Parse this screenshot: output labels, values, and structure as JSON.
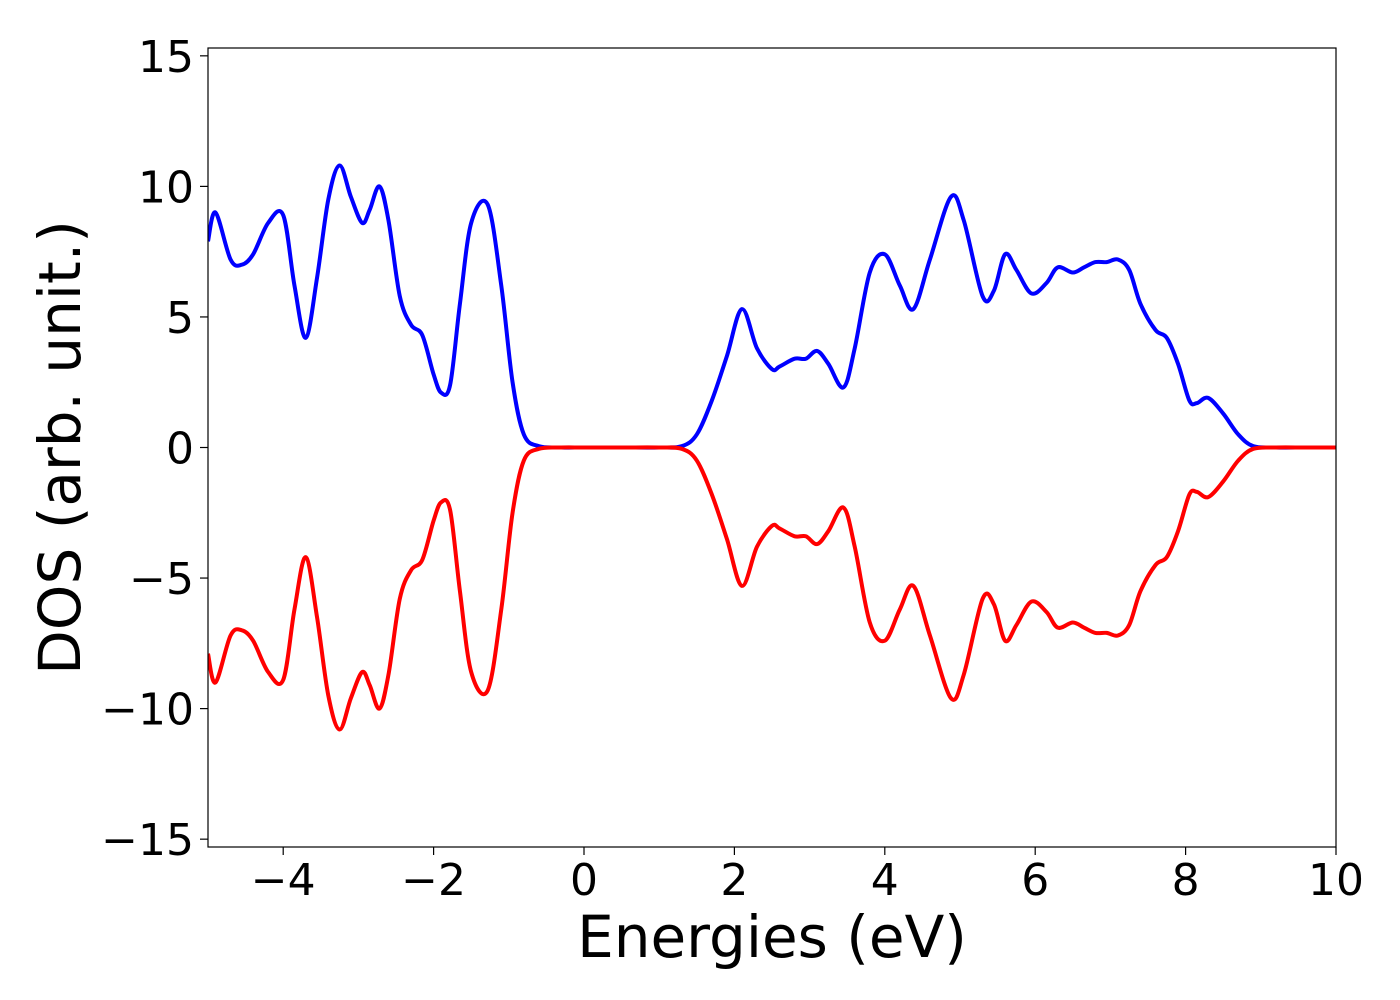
{
  "chart_data": {
    "type": "line",
    "title": "",
    "xlabel": "Energies (eV)",
    "ylabel": "DOS (arb. unit.)",
    "xlim": [
      -5,
      10
    ],
    "ylim": [
      -15.3,
      15.3
    ],
    "x_ticks": [
      -4,
      -2,
      0,
      2,
      4,
      6,
      8,
      10
    ],
    "x_tick_labels": [
      "−4",
      "−2",
      "0",
      "2",
      "4",
      "6",
      "8",
      "10"
    ],
    "y_ticks": [
      -15,
      -10,
      -5,
      0,
      5,
      10,
      15
    ],
    "y_tick_labels": [
      "−15",
      "−10",
      "−5",
      "0",
      "5",
      "10",
      "15"
    ],
    "grid": false,
    "legend": "none",
    "series": [
      {
        "color": "#0000ff",
        "x": [
          -5.0,
          -4.9,
          -4.7,
          -4.55,
          -4.4,
          -4.2,
          -4.0,
          -3.85,
          -3.7,
          -3.55,
          -3.4,
          -3.25,
          -3.1,
          -2.95,
          -2.85,
          -2.72,
          -2.6,
          -2.45,
          -2.3,
          -2.15,
          -2.0,
          -1.9,
          -1.78,
          -1.65,
          -1.5,
          -1.28,
          -1.1,
          -0.95,
          -0.8,
          -0.6,
          -0.3,
          0.0,
          0.5,
          1.0,
          1.3,
          1.5,
          1.7,
          1.9,
          2.1,
          2.3,
          2.5,
          2.6,
          2.8,
          2.95,
          3.1,
          3.25,
          3.45,
          3.6,
          3.8,
          4.0,
          4.2,
          4.38,
          4.6,
          4.88,
          5.05,
          5.3,
          5.45,
          5.6,
          5.75,
          5.95,
          6.15,
          6.3,
          6.5,
          6.65,
          6.8,
          6.95,
          7.1,
          7.25,
          7.4,
          7.6,
          7.75,
          7.9,
          8.05,
          8.15,
          8.3,
          8.5,
          8.7,
          8.9,
          9.2,
          9.6,
          10.0
        ],
        "values": [
          7.9,
          9.0,
          7.2,
          7.0,
          7.4,
          8.6,
          8.9,
          6.2,
          4.2,
          6.5,
          9.5,
          10.8,
          9.6,
          8.6,
          9.1,
          10.0,
          8.7,
          5.8,
          4.7,
          4.3,
          2.8,
          2.1,
          2.4,
          5.5,
          8.6,
          9.3,
          6.2,
          2.5,
          0.5,
          0.05,
          0.0,
          0.0,
          0.0,
          0.0,
          0.05,
          0.5,
          1.8,
          3.5,
          5.3,
          3.8,
          3.0,
          3.1,
          3.4,
          3.4,
          3.7,
          3.2,
          2.3,
          3.8,
          6.7,
          7.4,
          6.2,
          5.3,
          7.2,
          9.6,
          8.7,
          5.8,
          6.0,
          7.4,
          6.8,
          5.9,
          6.3,
          6.9,
          6.7,
          6.9,
          7.1,
          7.1,
          7.2,
          6.8,
          5.5,
          4.5,
          4.2,
          3.2,
          1.8,
          1.7,
          1.9,
          1.3,
          0.5,
          0.05,
          0.0,
          0.0,
          0.0
        ]
      },
      {
        "color": "#ff0000",
        "x": [
          -5.0,
          -4.9,
          -4.7,
          -4.55,
          -4.4,
          -4.2,
          -4.0,
          -3.85,
          -3.7,
          -3.55,
          -3.4,
          -3.25,
          -3.1,
          -2.95,
          -2.85,
          -2.72,
          -2.6,
          -2.45,
          -2.3,
          -2.15,
          -2.0,
          -1.9,
          -1.78,
          -1.65,
          -1.5,
          -1.28,
          -1.1,
          -0.95,
          -0.8,
          -0.6,
          -0.3,
          0.0,
          0.5,
          1.0,
          1.3,
          1.5,
          1.7,
          1.9,
          2.1,
          2.3,
          2.5,
          2.6,
          2.8,
          2.95,
          3.1,
          3.25,
          3.45,
          3.6,
          3.8,
          4.0,
          4.2,
          4.38,
          4.6,
          4.88,
          5.05,
          5.3,
          5.45,
          5.6,
          5.75,
          5.95,
          6.15,
          6.3,
          6.5,
          6.65,
          6.8,
          6.95,
          7.1,
          7.25,
          7.4,
          7.6,
          7.75,
          7.9,
          8.05,
          8.15,
          8.3,
          8.5,
          8.7,
          8.9,
          9.2,
          9.6,
          10.0
        ],
        "values": [
          -7.9,
          -9.0,
          -7.2,
          -7.0,
          -7.4,
          -8.6,
          -8.9,
          -6.2,
          -4.2,
          -6.5,
          -9.5,
          -10.8,
          -9.6,
          -8.6,
          -9.1,
          -10.0,
          -8.7,
          -5.8,
          -4.7,
          -4.3,
          -2.8,
          -2.1,
          -2.4,
          -5.5,
          -8.6,
          -9.3,
          -6.2,
          -2.5,
          -0.5,
          -0.05,
          0.0,
          0.0,
          0.0,
          0.0,
          -0.05,
          -0.5,
          -1.8,
          -3.5,
          -5.3,
          -3.8,
          -3.0,
          -3.1,
          -3.4,
          -3.4,
          -3.7,
          -3.2,
          -2.3,
          -3.8,
          -6.7,
          -7.4,
          -6.2,
          -5.3,
          -7.2,
          -9.6,
          -8.7,
          -5.8,
          -6.0,
          -7.4,
          -6.8,
          -5.9,
          -6.3,
          -6.9,
          -6.7,
          -6.9,
          -7.1,
          -7.1,
          -7.2,
          -6.8,
          -5.5,
          -4.5,
          -4.2,
          -3.2,
          -1.8,
          -1.7,
          -1.9,
          -1.3,
          -0.5,
          -0.05,
          0.0,
          0.0,
          0.0
        ]
      }
    ]
  }
}
